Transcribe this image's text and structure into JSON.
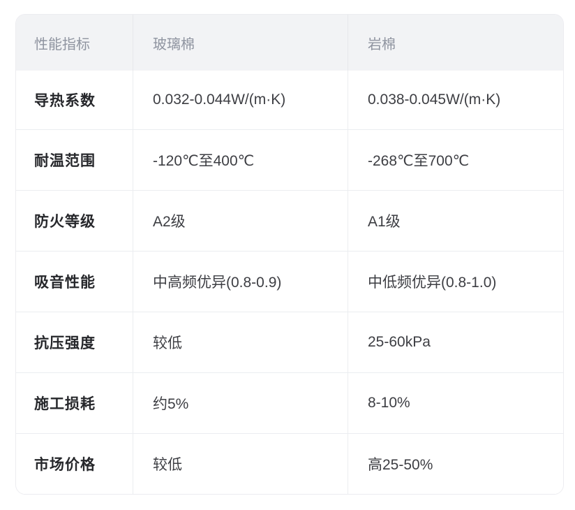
{
  "theme": {
    "page-bg": "#ffffff",
    "table-border": "#ececf0",
    "header-bg": "#f2f3f5",
    "header-text": "#8f94a0",
    "row-divider": "#ebedf0",
    "col-divider": "#ebedf0",
    "label-text": "#26272b",
    "value-text": "#3d3e43"
  },
  "table": {
    "columns": [
      "性能指标",
      "玻璃棉",
      "岩棉"
    ],
    "rows": [
      {
        "label": "导热系数",
        "glass_wool": "0.032-0.044W/(m·K)",
        "rock_wool": "0.038-0.045W/(m·K)"
      },
      {
        "label": "耐温范围",
        "glass_wool": "-120℃至400℃",
        "rock_wool": "-268℃至700℃"
      },
      {
        "label": "防火等级",
        "glass_wool": "A2级",
        "rock_wool": "A1级"
      },
      {
        "label": "吸音性能",
        "glass_wool": "中高频优异(0.8-0.9)",
        "rock_wool": "中低频优异(0.8-1.0)"
      },
      {
        "label": "抗压强度",
        "glass_wool": "较低",
        "rock_wool": "25-60kPa"
      },
      {
        "label": "施工损耗",
        "glass_wool": "约5%",
        "rock_wool": "8-10%"
      },
      {
        "label": "市场价格",
        "glass_wool": "较低",
        "rock_wool": "高25-50%"
      }
    ]
  }
}
